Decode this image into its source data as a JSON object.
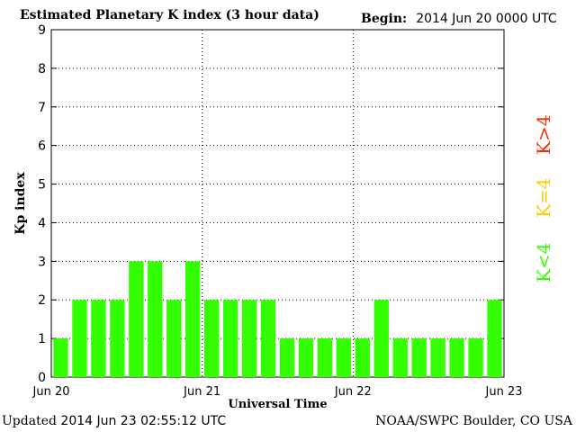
{
  "header": {
    "title": "Estimated Planetary K index (3 hour data)",
    "begin_label": "Begin:",
    "begin_value": "2014 Jun 20 0000 UTC"
  },
  "footer": {
    "updated_label": "Updated",
    "updated_value": "2014 Jun 23 02:55:12 UTC",
    "credit": "NOAA/SWPC Boulder, CO USA"
  },
  "legend": {
    "storm": {
      "label": "K>4",
      "color": "#ff2a00"
    },
    "active": {
      "label": "K=4",
      "color": "#ffcc00"
    },
    "quiet": {
      "label": "K<4",
      "color": "#33ff00"
    }
  },
  "chart_data": {
    "type": "bar",
    "title": "Estimated Planetary K index (3 hour data)",
    "xlabel": "Universal Time",
    "ylabel": "Kp index",
    "ylim": [
      0,
      9
    ],
    "yticks": [
      0,
      1,
      2,
      3,
      4,
      5,
      6,
      7,
      8,
      9
    ],
    "xtick_labels": [
      "Jun 20",
      "Jun 21",
      "Jun 22",
      "Jun 23"
    ],
    "grid": true,
    "bar_color": "#33ff00",
    "values": [
      1,
      2,
      2,
      2,
      3,
      3,
      2,
      3,
      2,
      2,
      2,
      2,
      1,
      1,
      1,
      1,
      1,
      2,
      1,
      1,
      1,
      1,
      1,
      2
    ]
  }
}
